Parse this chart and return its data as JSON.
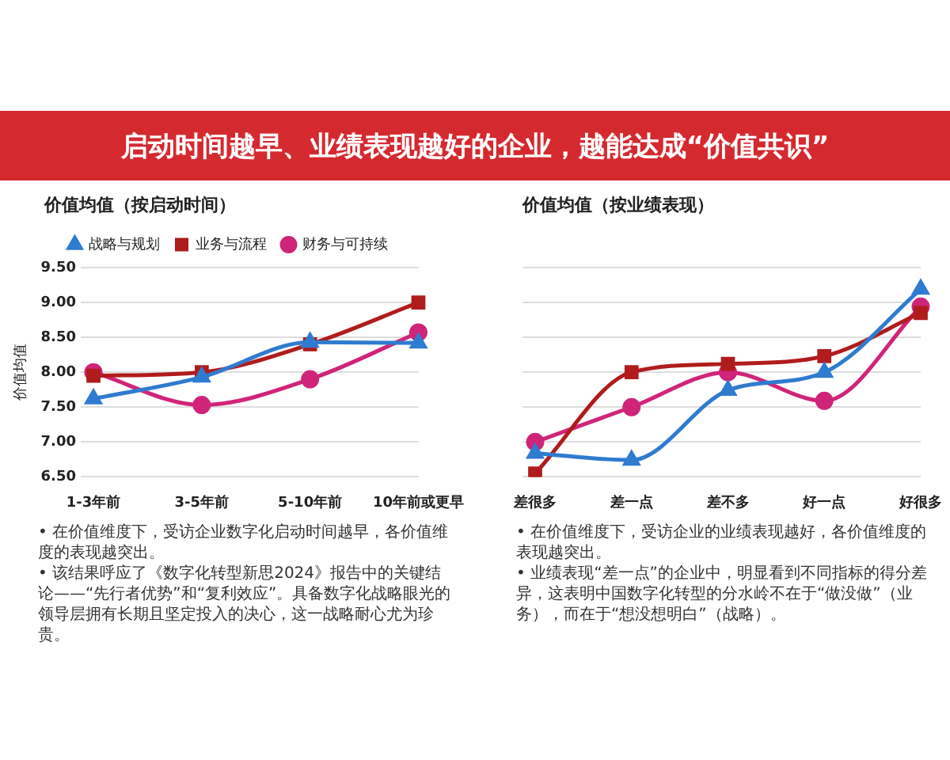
{
  "chart_data": [
    {
      "type": "line",
      "title": "启动时间越早、业绩表现越好的企业，越能达成“价值共识”",
      "subtitle": "价值均值（按启动时间）",
      "ylabel": "价值均值",
      "categories": [
        "1-3年前",
        "3-5年前",
        "5-10年前",
        "10年前或更早"
      ],
      "series": [
        {
          "name": "战略与规划",
          "color": "#2f7bd0",
          "marker": "triangle",
          "values": [
            7.62,
            7.93,
            8.43,
            8.42
          ]
        },
        {
          "name": "业务与流程",
          "color": "#b01c1c",
          "marker": "square",
          "values": [
            7.95,
            8.0,
            8.4,
            9.0
          ]
        },
        {
          "name": "财务与可持续",
          "color": "#d0247a",
          "marker": "circle",
          "values": [
            8.0,
            7.53,
            7.9,
            8.57
          ]
        }
      ],
      "ylim": [
        6.5,
        9.5
      ],
      "yticks": [
        {
          "value": 6.5,
          "label": "6.50"
        },
        {
          "value": 7,
          "label": "7.00"
        },
        {
          "value": 7.5,
          "label": "7.50"
        },
        {
          "value": 8,
          "label": "8.00"
        },
        {
          "value": 8.5,
          "label": "8.50"
        },
        {
          "value": 9,
          "label": "9.00"
        },
        {
          "value": 9.5,
          "label": "9.50"
        }
      ],
      "grid": "y",
      "legend": "top",
      "annotations": [
        "• 在价值维度下，受访企业数字化启动时间越早，各价值维度的表现越突出。",
        "• 该结果呼应了《数字化转型新思2024》报告中的关键结论——“先行者优势”和“复利效应”。具备数字化战略眼光的领导层拥有长期且坚定投入的决心，这一战略耐心尤为珍贵。"
      ]
    },
    {
      "type": "line",
      "title": "价值均值（按业绩表现）",
      "categories": [
        "差很多",
        "差一点",
        "差不多",
        "好一点",
        "好很多"
      ],
      "series": [
        {
          "color": "#2f7bd0",
          "marker": "triangle",
          "values": [
            6.84,
            6.74,
            7.74,
            8.0,
            9.19
          ]
        },
        {
          "color": "#b01c1c",
          "marker": "square",
          "values": [
            6.55,
            8.0,
            8.12,
            8.23,
            8.85
          ]
        },
        {
          "color": "#d0247a",
          "marker": "circle",
          "values": [
            7.0,
            7.5,
            8.0,
            7.59,
            8.94
          ]
        }
      ],
      "ylim": [
        6.5,
        9.5
      ],
      "yticks": [
        {
          "value": 6.5,
          "label": null
        },
        {
          "value": 7,
          "label": null
        },
        {
          "value": 7.5,
          "label": null
        },
        {
          "value": 8,
          "label": null
        },
        {
          "value": 8.5,
          "label": null
        },
        {
          "value": 9,
          "label": null
        },
        {
          "value": 9.5,
          "label": null
        }
      ],
      "grid": "y",
      "tick_labels": "x",
      "annotations": [
        "• 在价值维度下，受访企业的业绩表现越好，各价值维度的表现越突出。",
        "• 业绩表现“差一点”的企业中，明显看到不同指标的得分差异，这表明中国数字化转型的分水岭不在于“做没做”（业务），而在于“想没想明白”（战略）。"
      ]
    }
  ]
}
